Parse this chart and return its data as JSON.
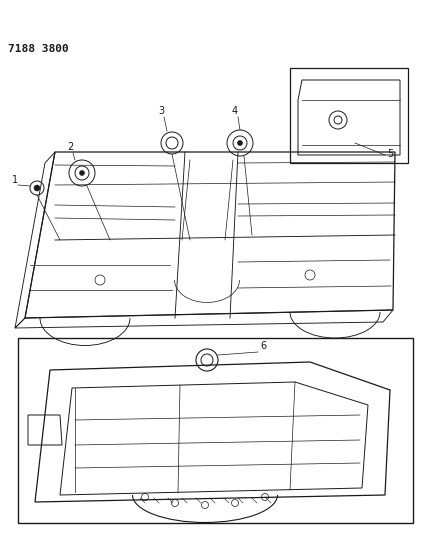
{
  "title": "7188 3800",
  "bg_color": "#ffffff",
  "line_color": "#1a1a1a",
  "fig_width": 4.28,
  "fig_height": 5.33,
  "dpi": 100
}
